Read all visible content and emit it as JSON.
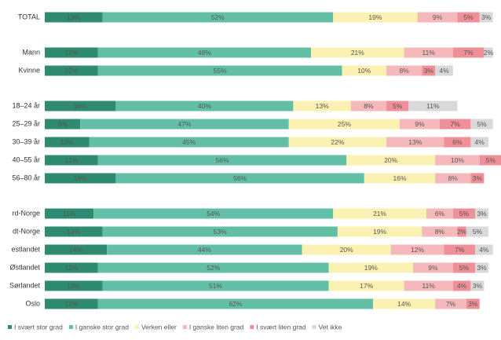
{
  "chart_data": {
    "type": "stacked-bar",
    "categories": [
      "TOTAL",
      "Mann",
      "Kvinne",
      "18–24 år",
      "25–29 år",
      "30–39 år",
      "40–55 år",
      "56–80 år",
      "rd-Norge",
      "dt-Norge",
      "estlandet",
      "Østlandet",
      "Sørlandet",
      "Oslo"
    ],
    "series": [
      {
        "name": "I svært stor grad",
        "color": "#2e8b6f",
        "values": [
          13,
          12,
          12,
          16,
          8,
          10,
          12,
          16,
          11,
          13,
          14,
          12,
          13,
          12
        ],
        "value_labels": [
          "13%",
          "12%",
          "12%",
          "16%",
          "8%",
          "10%",
          "12%",
          "16%",
          "11%",
          "13%",
          "14%",
          "12%",
          "13%",
          "12%"
        ]
      },
      {
        "name": "I ganske stor grad",
        "color": "#62bfa6",
        "values": [
          52,
          48,
          55,
          40,
          47,
          45,
          56,
          56,
          54,
          53,
          44,
          52,
          51,
          62
        ],
        "value_labels": [
          "52%",
          "48%",
          "55%",
          "40%",
          "47%",
          "45%",
          "56%",
          "56%",
          "54%",
          "53%",
          "44%",
          "52%",
          "51%",
          "62%"
        ]
      },
      {
        "name": "Verken eller",
        "color": "#fbf1b3",
        "values": [
          19,
          21,
          10,
          13,
          25,
          22,
          20,
          16,
          21,
          19,
          20,
          19,
          17,
          14
        ],
        "value_labels": [
          "19%",
          "21%",
          "10%",
          "13%",
          "25%",
          "22%",
          "20%",
          "16%",
          "21%",
          "19%",
          "20%",
          "19%",
          "17%",
          "14%"
        ]
      },
      {
        "name": "I ganske liten grad",
        "color": "#f6b9bb",
        "values": [
          9,
          11,
          8,
          8,
          9,
          13,
          10,
          8,
          6,
          8,
          12,
          9,
          11,
          7
        ],
        "value_labels": [
          "9%",
          "11%",
          "8%",
          "8%",
          "9%",
          "13%",
          "10%",
          "8%",
          "6%",
          "8%",
          "12%",
          "9%",
          "11%",
          "7%"
        ]
      },
      {
        "name": "I svært liten grad",
        "color": "#ef8f98",
        "values": [
          5,
          7,
          3,
          5,
          7,
          6,
          5,
          3,
          5,
          2,
          7,
          5,
          4,
          3
        ],
        "value_labels": [
          "5%",
          "7%",
          "3%",
          "5%",
          "7%",
          "6%",
          "5%",
          "3%",
          "5%",
          "2%",
          "7%",
          "5%",
          "4%",
          "3%"
        ]
      },
      {
        "name": "Vet ikke",
        "color": "#d9d9d9",
        "values": [
          3,
          2,
          4,
          11,
          5,
          4,
          3,
          null,
          3,
          5,
          4,
          3,
          3,
          null
        ],
        "value_labels": [
          "3%",
          "2%",
          "4%",
          "11%",
          "5%",
          "4%",
          "3%",
          null,
          "3%",
          "5%",
          "4%",
          "3%",
          "3%",
          null
        ]
      }
    ]
  }
}
